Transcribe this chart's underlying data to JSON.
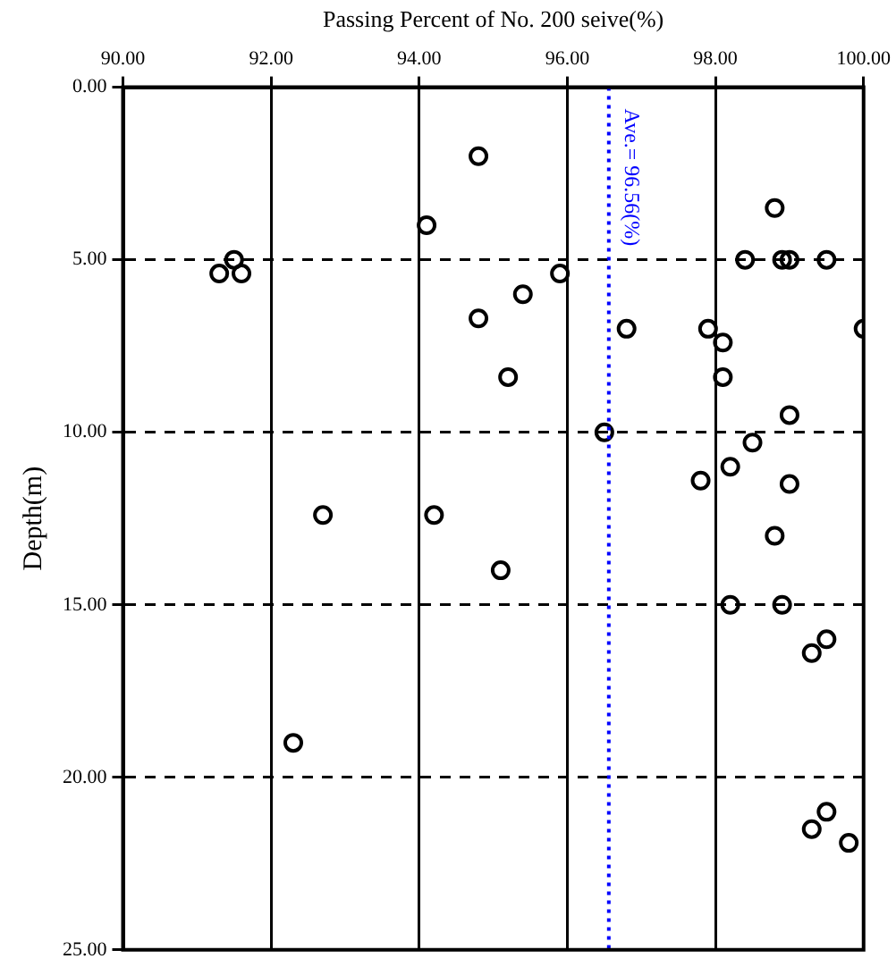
{
  "chart_data": {
    "type": "scatter",
    "xlabel": "Passing Percent of No. 200 seive(%)",
    "ylabel": "Depth(m)",
    "series": [
      {
        "color": "#000000",
        "x": [
          94.8,
          94.1,
          91.5,
          91.3,
          91.6,
          95.9,
          95.4,
          94.8,
          96.8,
          95.2,
          96.5,
          98.8,
          98.4,
          98.9,
          99.0,
          99.5,
          97.9,
          98.1,
          100.0,
          98.1,
          99.0,
          98.5,
          98.2,
          97.8,
          99.0,
          98.8,
          98.2,
          98.9,
          99.5,
          99.3,
          99.5,
          99.3,
          99.8,
          92.7,
          94.2,
          95.1,
          92.3
        ],
        "values": [
          2.0,
          4.0,
          5.0,
          5.4,
          5.4,
          5.4,
          6.0,
          6.7,
          7.0,
          8.4,
          10.0,
          3.5,
          5.0,
          5.0,
          5.0,
          5.0,
          7.0,
          7.4,
          7.0,
          8.4,
          9.5,
          10.3,
          11.0,
          11.4,
          11.5,
          13.0,
          15.0,
          15.0,
          16.0,
          16.4,
          21.0,
          21.5,
          21.9,
          12.4,
          12.4,
          14.0,
          19.0
        ]
      }
    ],
    "xlim": [
      90,
      100
    ],
    "xticks": [
      {
        "value": 90,
        "label": "90.00"
      },
      {
        "value": 92,
        "label": "92.00"
      },
      {
        "value": 94,
        "label": "94.00"
      },
      {
        "value": 96,
        "label": "96.00"
      },
      {
        "value": 98,
        "label": "98.00"
      },
      {
        "value": 100,
        "label": "100.00"
      }
    ],
    "ylim": [
      25,
      0
    ],
    "yticks": [
      {
        "value": 0,
        "label": "0.00"
      },
      {
        "value": 5,
        "label": "5.00"
      },
      {
        "value": 10,
        "label": "10.00"
      },
      {
        "value": 15,
        "label": "15.00"
      },
      {
        "value": 20,
        "label": "20.00"
      },
      {
        "value": 25,
        "label": "25.00"
      }
    ],
    "grid": true,
    "marker": "circle",
    "ref_lines": [
      {
        "axis": "x",
        "value": 96.56,
        "label": "Ave.= 96.56(%)",
        "color": "#0000ff",
        "line_style": "dotted"
      }
    ]
  }
}
